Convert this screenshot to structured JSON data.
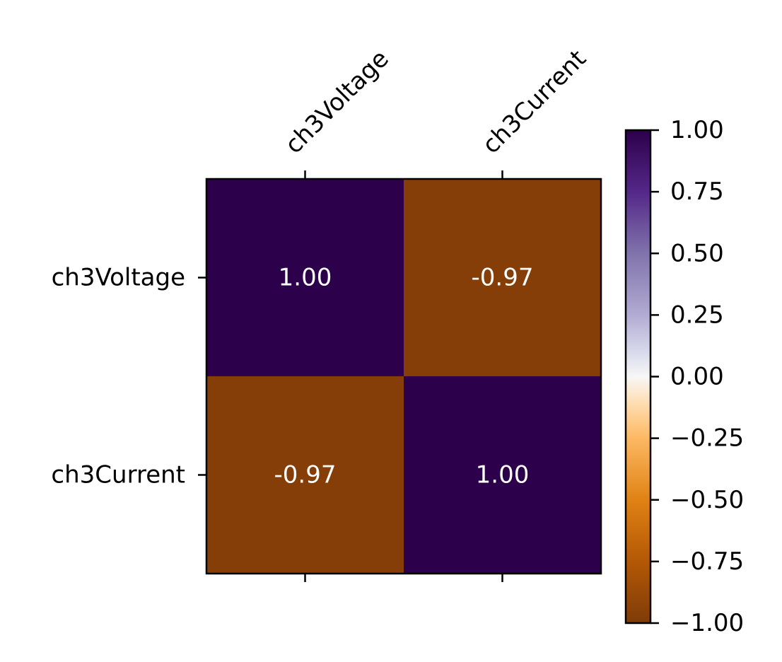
{
  "chart_data": {
    "type": "heatmap",
    "row_labels": [
      "ch3Voltage",
      "ch3Current"
    ],
    "col_labels": [
      "ch3Voltage",
      "ch3Current"
    ],
    "values": [
      [
        1.0,
        -0.97
      ],
      [
        -0.97,
        1.0
      ]
    ],
    "cell_labels": [
      [
        "1.00",
        "-0.97"
      ],
      [
        "-0.97",
        "1.00"
      ]
    ],
    "colormap": "PuOr",
    "vmin": -1.0,
    "vmax": 1.0,
    "colorbar": {
      "ticks": [
        1.0,
        0.75,
        0.5,
        0.25,
        0.0,
        -0.25,
        -0.5,
        -0.75,
        -1.0
      ],
      "tick_labels": [
        "1.00",
        "0.75",
        "0.50",
        "0.25",
        "0.00",
        "−0.25",
        "−0.50",
        "−0.75",
        "−1.00"
      ],
      "stops": [
        {
          "value": -1.0,
          "color": "#7f3b08"
        },
        {
          "value": -0.75,
          "color": "#b35806"
        },
        {
          "value": -0.5,
          "color": "#e08214"
        },
        {
          "value": -0.25,
          "color": "#fdb863"
        },
        {
          "value": -0.1,
          "color": "#fee0b6"
        },
        {
          "value": 0.0,
          "color": "#f7f7f7"
        },
        {
          "value": 0.1,
          "color": "#d8daeb"
        },
        {
          "value": 0.25,
          "color": "#b2abd2"
        },
        {
          "value": 0.5,
          "color": "#8073ac"
        },
        {
          "value": 0.75,
          "color": "#542788"
        },
        {
          "value": 1.0,
          "color": "#2d004b"
        }
      ]
    },
    "col_label_position": "top",
    "col_label_rotation": 45,
    "grid": false
  }
}
